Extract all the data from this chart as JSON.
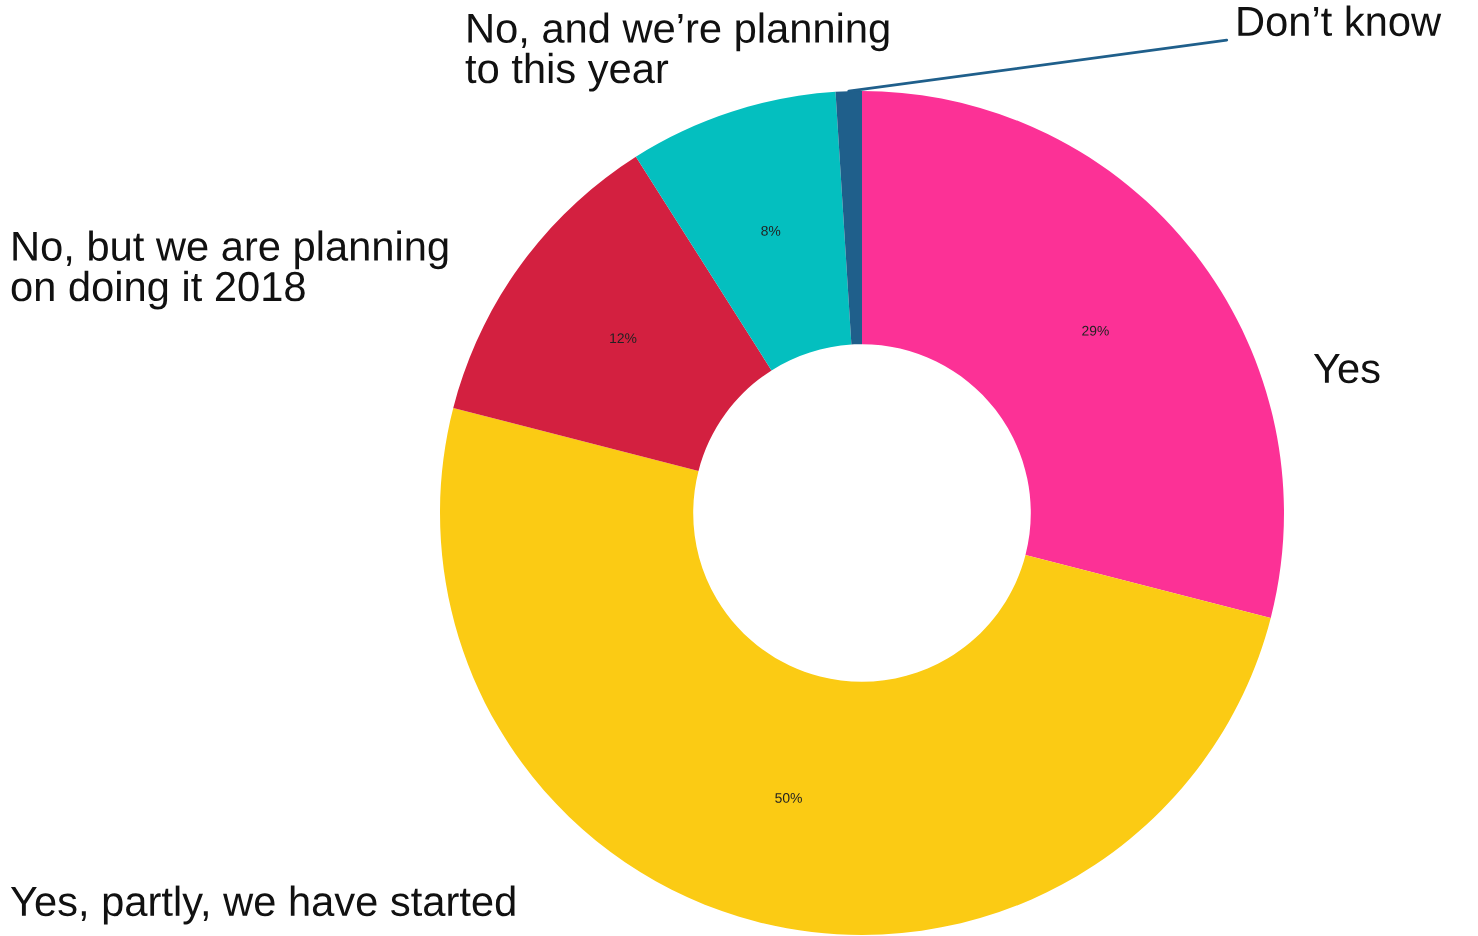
{
  "chart_data": {
    "type": "donut",
    "categories": [
      "Yes",
      "Yes, partly, we have started",
      "No, but we are planning\non doing it 2018",
      "No, and we’re planning\nto this year",
      "Don’t know"
    ],
    "values": [
      29,
      50,
      12,
      8,
      1
    ],
    "value_labels": [
      "29%",
      "50%",
      "12%",
      "8%",
      null
    ],
    "colors": [
      "#fc3196",
      "#fbcb14",
      "#d32040",
      "#04bfbf",
      "#1f5f8b"
    ],
    "legend": false
  }
}
